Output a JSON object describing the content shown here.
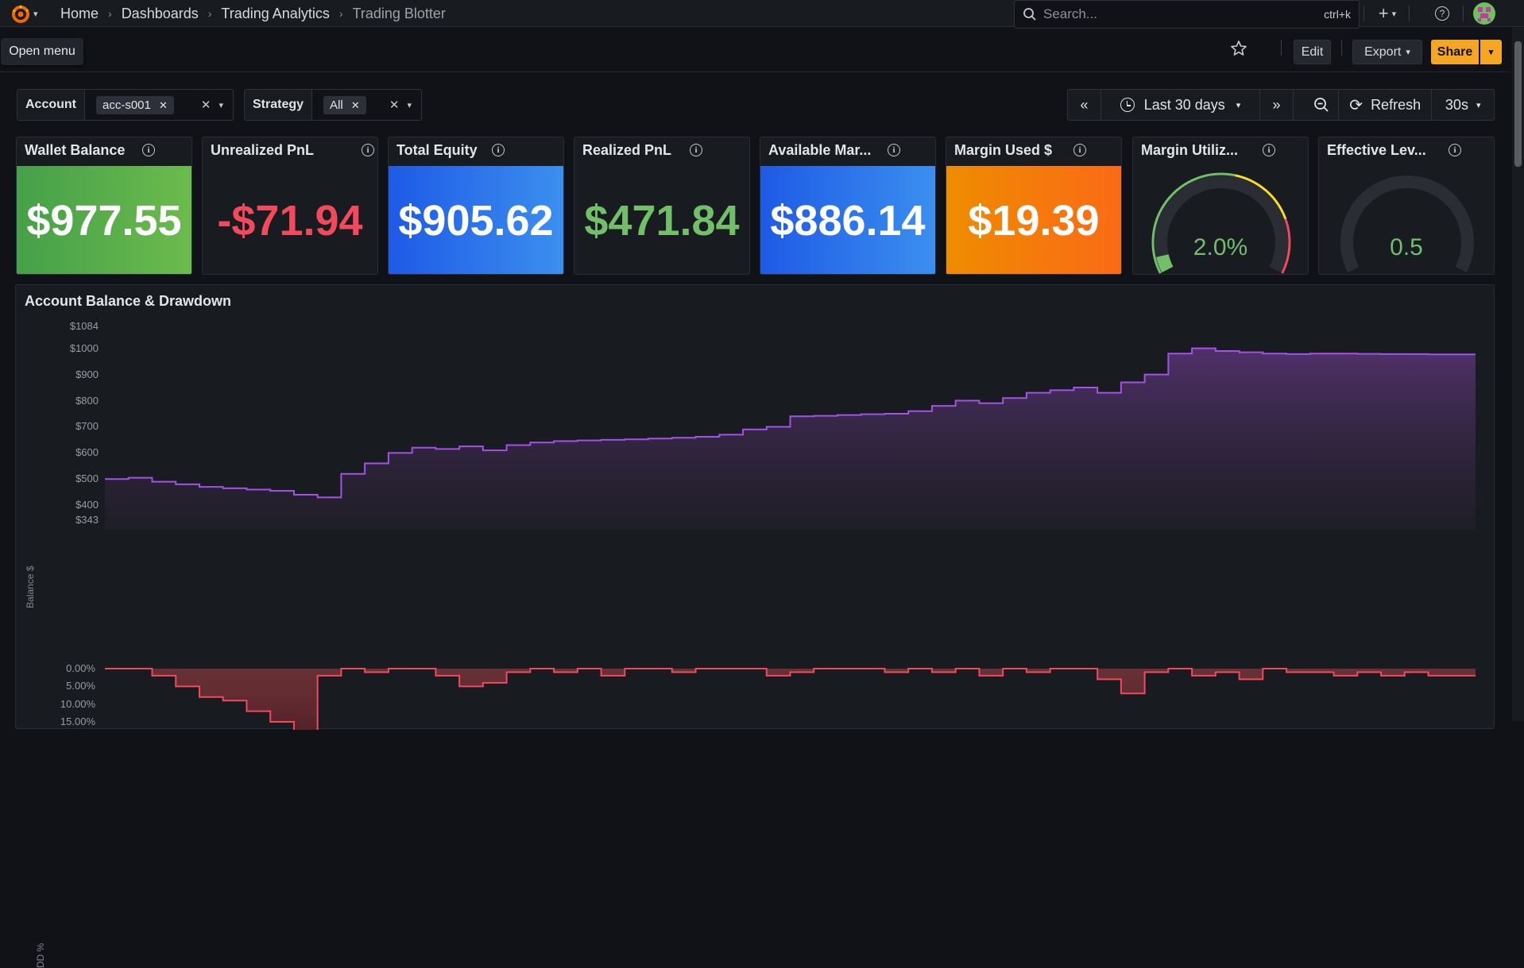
{
  "breadcrumb": [
    "Home",
    "Dashboards",
    "Trading Analytics",
    "Trading Blotter"
  ],
  "search": {
    "placeholder": "Search...",
    "shortcut": "ctrl+k"
  },
  "tooltip": "Open menu",
  "toolbar": {
    "edit_label": "Edit",
    "export_label": "Export",
    "share_label": "Share"
  },
  "variables": [
    {
      "label": "Account",
      "value": "acc-s001"
    },
    {
      "label": "Strategy",
      "value": "All"
    }
  ],
  "time": {
    "range": "Last 30 days",
    "refresh_label": "Refresh",
    "interval": "30s"
  },
  "stats": [
    {
      "title": "Wallet Balance",
      "value": "$977.55",
      "bg": "#4caf50",
      "color": "#ffffff"
    },
    {
      "title": "Unrealized PnL",
      "value": "-$71.94",
      "bg": "#181b1f",
      "color": "#f2495c"
    },
    {
      "title": "Total Equity",
      "value": "$905.62",
      "bg": "#2563eb",
      "color": "#ffffff"
    },
    {
      "title": "Realized PnL",
      "value": "$471.84",
      "bg": "#181b1f",
      "color": "#73bf69"
    },
    {
      "title": "Available Mar...",
      "value": "$886.14",
      "bg": "#2563eb",
      "color": "#ffffff"
    },
    {
      "title": "Margin Used $",
      "value": "$19.39",
      "bg": "#f28c00",
      "color": "#ffffff"
    }
  ],
  "gauges": [
    {
      "title": "Margin Utiliz...",
      "value": "2.0%",
      "fraction": 0.02
    },
    {
      "title": "Effective Lev...",
      "value": "0.5",
      "fraction": 0.05
    }
  ],
  "chart_panel": {
    "title": "Account Balance & Drawdown"
  },
  "chart_data": [
    {
      "type": "area",
      "ylabel": "Balance $",
      "yticks": [
        "$1084",
        "$1000",
        "$900",
        "$800",
        "$700",
        "$600",
        "$500",
        "$400",
        "$343"
      ],
      "ylim": [
        343,
        1084
      ],
      "series": [
        {
          "color": "#a352e8",
          "values": [
            500,
            505,
            490,
            480,
            470,
            465,
            460,
            455,
            440,
            430,
            520,
            560,
            600,
            620,
            615,
            625,
            610,
            630,
            640,
            645,
            648,
            650,
            652,
            655,
            658,
            662,
            670,
            690,
            700,
            740,
            742,
            745,
            748,
            750,
            760,
            780,
            800,
            790,
            810,
            830,
            840,
            850,
            830,
            870,
            900,
            980,
            1000,
            990,
            985,
            980,
            978,
            980,
            980,
            979,
            978,
            978,
            977,
            977,
            977
          ]
        }
      ]
    },
    {
      "type": "area",
      "ylabel": "DD %",
      "yticks": [
        "0.00%",
        "5.00%",
        "10.00%",
        "15.00%"
      ],
      "ylim": [
        0,
        15
      ],
      "series": [
        {
          "color": "#f2495c",
          "values": [
            0,
            0,
            2,
            5,
            8,
            9,
            12,
            15,
            18,
            2,
            0,
            1,
            0,
            0,
            2,
            5,
            4,
            1,
            0,
            1,
            0,
            2,
            0,
            0,
            1,
            0,
            0,
            0,
            2,
            1,
            0,
            0,
            0,
            1,
            0,
            1,
            0,
            2,
            0,
            1,
            0,
            0,
            3,
            7,
            1,
            0,
            2,
            1,
            3,
            0,
            1,
            1,
            2,
            1,
            2,
            1,
            2,
            2,
            2
          ]
        }
      ]
    }
  ]
}
